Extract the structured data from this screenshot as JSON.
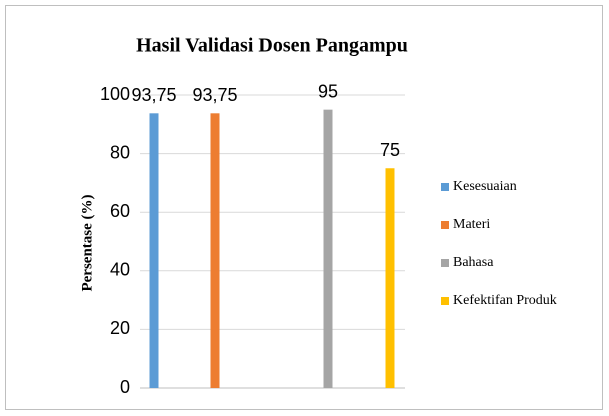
{
  "chart_data": {
    "type": "bar",
    "title": "Hasil Validasi Dosen Pangampu",
    "ylabel": "Persentase (%)",
    "series": [
      {
        "name": "Kesesuaian",
        "color": "#5b9bd5",
        "values": [
          93.75
        ],
        "value_labels": [
          "93,75"
        ]
      },
      {
        "name": "Materi",
        "color": "#ed7d31",
        "values": [
          93.75
        ],
        "value_labels": [
          "93,75"
        ]
      },
      {
        "name": "Bahasa",
        "color": "#a5a5a5",
        "values": [
          95
        ]
      },
      {
        "name": "Kefektifan Produk",
        "color": "#ffc000",
        "values": [
          75
        ]
      }
    ],
    "ylim": [
      0,
      100
    ],
    "yticks": [
      0,
      20,
      40,
      60,
      80,
      100
    ],
    "grid": true,
    "legend": "right"
  }
}
